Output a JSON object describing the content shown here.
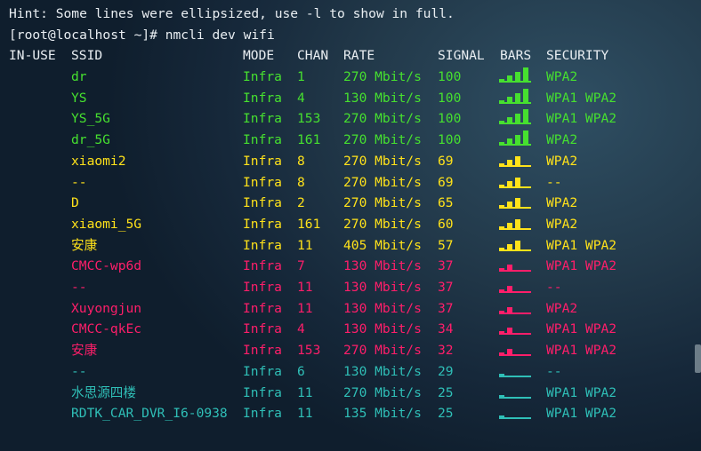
{
  "terminal": {
    "hint": "Hint: Some lines were ellipsized, use -l to show in full.",
    "prompt": "[root@localhost ~]# nmcli dev wifi"
  },
  "colors": {
    "green": "#46e02f",
    "yellow": "#ffe21a",
    "red": "#ff1e6a",
    "cyan": "#2fbfb7",
    "white": "#e9eef2"
  },
  "headers": [
    "IN-USE",
    "SSID",
    "MODE",
    "CHAN",
    "RATE",
    "SIGNAL",
    "BARS",
    "SECURITY"
  ],
  "rows": [
    {
      "ssid": "dr",
      "mode": "Infra",
      "chan": "1",
      "rate": "270 Mbit/s",
      "signal": "100",
      "bars": 4,
      "security": "WPA2",
      "color": "green"
    },
    {
      "ssid": "YS",
      "mode": "Infra",
      "chan": "4",
      "rate": "130 Mbit/s",
      "signal": "100",
      "bars": 4,
      "security": "WPA1 WPA2",
      "color": "green"
    },
    {
      "ssid": "YS_5G",
      "mode": "Infra",
      "chan": "153",
      "rate": "270 Mbit/s",
      "signal": "100",
      "bars": 4,
      "security": "WPA1 WPA2",
      "color": "green"
    },
    {
      "ssid": "dr_5G",
      "mode": "Infra",
      "chan": "161",
      "rate": "270 Mbit/s",
      "signal": "100",
      "bars": 4,
      "security": "WPA2",
      "color": "green"
    },
    {
      "ssid": "xiaomi2",
      "mode": "Infra",
      "chan": "8",
      "rate": "270 Mbit/s",
      "signal": "69",
      "bars": 3,
      "security": "WPA2",
      "color": "yellow"
    },
    {
      "ssid": "--",
      "mode": "Infra",
      "chan": "8",
      "rate": "270 Mbit/s",
      "signal": "69",
      "bars": 3,
      "security": "--",
      "color": "yellow"
    },
    {
      "ssid": "D",
      "mode": "Infra",
      "chan": "2",
      "rate": "270 Mbit/s",
      "signal": "65",
      "bars": 3,
      "security": "WPA2",
      "color": "yellow"
    },
    {
      "ssid": "xiaomi_5G",
      "mode": "Infra",
      "chan": "161",
      "rate": "270 Mbit/s",
      "signal": "60",
      "bars": 3,
      "security": "WPA2",
      "color": "yellow"
    },
    {
      "ssid": "安康",
      "mode": "Infra",
      "chan": "11",
      "rate": "405 Mbit/s",
      "signal": "57",
      "bars": 3,
      "security": "WPA1 WPA2",
      "color": "yellow"
    },
    {
      "ssid": "CMCC-wp6d",
      "mode": "Infra",
      "chan": "7",
      "rate": "130 Mbit/s",
      "signal": "37",
      "bars": 2,
      "security": "WPA1 WPA2",
      "color": "red"
    },
    {
      "ssid": "--",
      "mode": "Infra",
      "chan": "11",
      "rate": "130 Mbit/s",
      "signal": "37",
      "bars": 2,
      "security": "--",
      "color": "red"
    },
    {
      "ssid": "Xuyongjun",
      "mode": "Infra",
      "chan": "11",
      "rate": "130 Mbit/s",
      "signal": "37",
      "bars": 2,
      "security": "WPA2",
      "color": "red"
    },
    {
      "ssid": "CMCC-qkEc",
      "mode": "Infra",
      "chan": "4",
      "rate": "130 Mbit/s",
      "signal": "34",
      "bars": 2,
      "security": "WPA1 WPA2",
      "color": "red"
    },
    {
      "ssid": "安康",
      "mode": "Infra",
      "chan": "153",
      "rate": "270 Mbit/s",
      "signal": "32",
      "bars": 2,
      "security": "WPA1 WPA2",
      "color": "red"
    },
    {
      "ssid": "--",
      "mode": "Infra",
      "chan": "6",
      "rate": "130 Mbit/s",
      "signal": "29",
      "bars": 1,
      "security": "--",
      "color": "cyan"
    },
    {
      "ssid": "水思源四楼",
      "mode": "Infra",
      "chan": "11",
      "rate": "270 Mbit/s",
      "signal": "25",
      "bars": 1,
      "security": "WPA1 WPA2",
      "color": "cyan"
    },
    {
      "ssid": "RDTK_CAR_DVR_I6-0938",
      "mode": "Infra",
      "chan": "11",
      "rate": "135 Mbit/s",
      "signal": "25",
      "bars": 1,
      "security": "WPA1 WPA2",
      "color": "cyan"
    }
  ]
}
